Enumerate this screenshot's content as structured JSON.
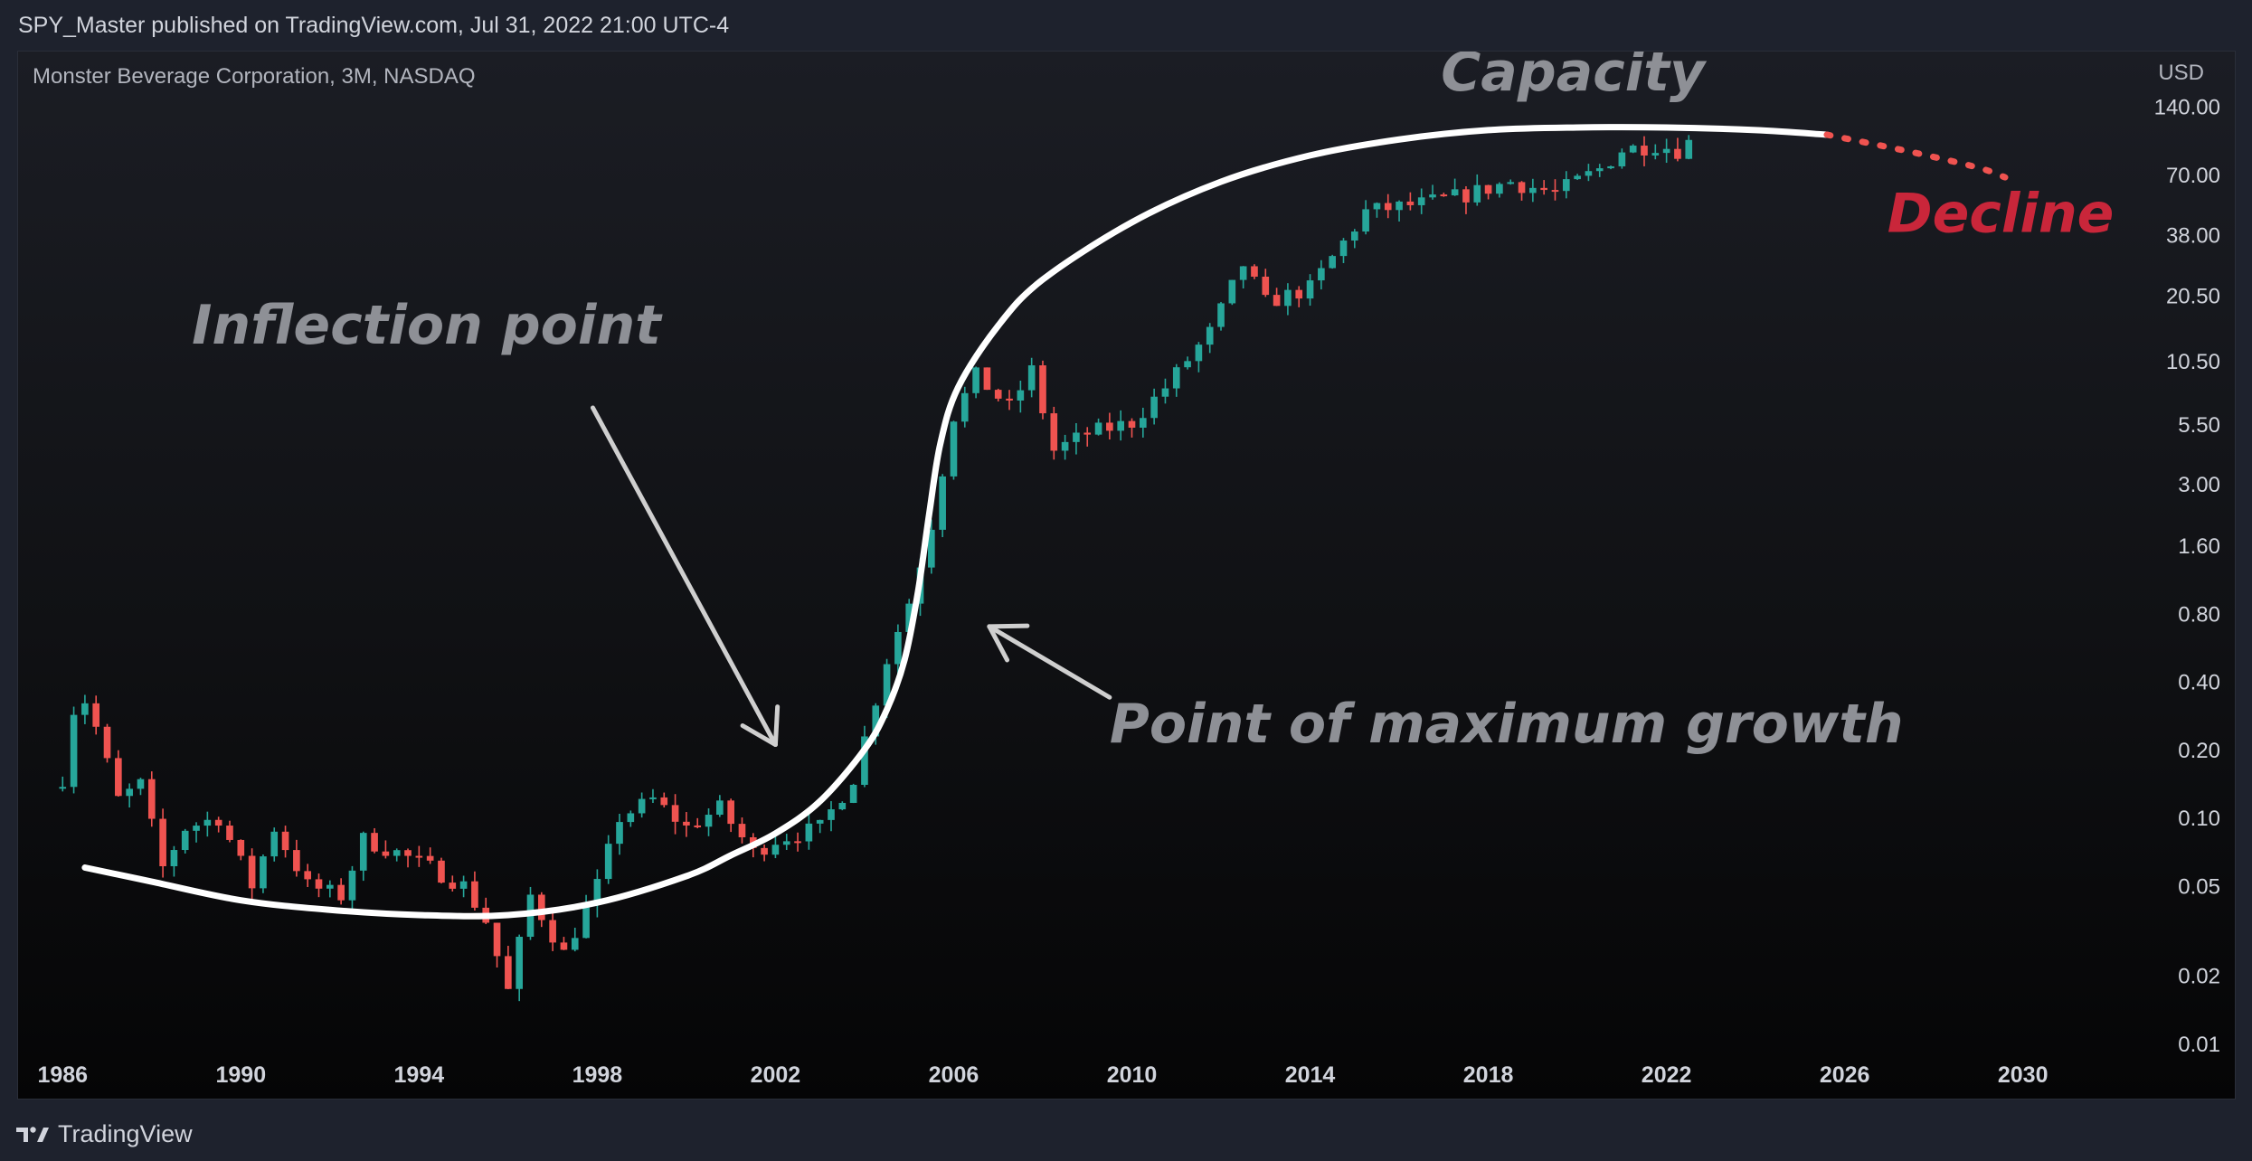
{
  "header": {
    "published_line": "SPY_Master published on TradingView.com, Jul 31, 2022 21:00 UTC-4"
  },
  "symbol": {
    "label": "Monster Beverage Corporation, 3M, NASDAQ"
  },
  "axis": {
    "currency": "USD"
  },
  "footer": {
    "brand": "TradingView"
  },
  "colors": {
    "up": "#26a69a",
    "down": "#ef5350",
    "curve": "#ffffff",
    "arrow": "#cfcfcf",
    "annotation_gray": "#8e9096",
    "decline": "#c9263a",
    "axis_text": "#d1d4dc"
  },
  "chart_data": {
    "type": "candlestick",
    "title": "Monster Beverage Corporation, 3M, NASDAQ",
    "xlabel": "",
    "ylabel": "USD",
    "y_scale": "log",
    "xlim": [
      1985.0,
      2032.3
    ],
    "ylim": [
      0.0057,
      245
    ],
    "grid": false,
    "x_ticks": [
      "1986",
      "1990",
      "1994",
      "1998",
      "2002",
      "2006",
      "2010",
      "2014",
      "2018",
      "2022",
      "2026",
      "2030"
    ],
    "y_ticks": [
      "140.00",
      "70.00",
      "38.00",
      "20.50",
      "10.50",
      "5.50",
      "3.00",
      "1.60",
      "0.80",
      "0.40",
      "0.20",
      "0.10",
      "0.05",
      "0.02",
      "0.01"
    ],
    "anchors": [
      [
        1986.0,
        0.15
      ],
      [
        1986.25,
        0.3
      ],
      [
        1986.5,
        0.33
      ],
      [
        1986.75,
        0.25
      ],
      [
        1987.25,
        0.12
      ],
      [
        1987.75,
        0.14
      ],
      [
        1988.25,
        0.06
      ],
      [
        1988.75,
        0.09
      ],
      [
        1989.5,
        0.1
      ],
      [
        1990.25,
        0.05
      ],
      [
        1990.75,
        0.09
      ],
      [
        1991.5,
        0.05
      ],
      [
        1992.25,
        0.045
      ],
      [
        1992.75,
        0.08
      ],
      [
        1993.5,
        0.07
      ],
      [
        1994.25,
        0.06
      ],
      [
        1995.0,
        0.05
      ],
      [
        1995.5,
        0.035
      ],
      [
        1996.0,
        0.017
      ],
      [
        1996.5,
        0.045
      ],
      [
        1997.25,
        0.025
      ],
      [
        1998.0,
        0.05
      ],
      [
        1998.5,
        0.1
      ],
      [
        1999.25,
        0.12
      ],
      [
        2000.0,
        0.09
      ],
      [
        2000.75,
        0.11
      ],
      [
        2001.5,
        0.07
      ],
      [
        2002.0,
        0.08
      ],
      [
        2003.0,
        0.09
      ],
      [
        2003.75,
        0.15
      ],
      [
        2004.5,
        0.5
      ],
      [
        2005.0,
        0.9
      ],
      [
        2005.5,
        2.0
      ],
      [
        2006.0,
        6.0
      ],
      [
        2006.5,
        9.0
      ],
      [
        2007.25,
        6.5
      ],
      [
        2007.75,
        9.5
      ],
      [
        2008.25,
        4.2
      ],
      [
        2009.0,
        5.0
      ],
      [
        2010.0,
        5.6
      ],
      [
        2010.75,
        8.0
      ],
      [
        2011.75,
        14.0
      ],
      [
        2012.5,
        28.0
      ],
      [
        2013.0,
        19.0
      ],
      [
        2014.0,
        22.0
      ],
      [
        2014.75,
        35.0
      ],
      [
        2015.25,
        48.0
      ],
      [
        2016.5,
        52.0
      ],
      [
        2017.5,
        57.0
      ],
      [
        2018.5,
        65.0
      ],
      [
        2019.5,
        58.0
      ],
      [
        2020.5,
        74.0
      ],
      [
        2021.0,
        90.0
      ],
      [
        2021.75,
        95.0
      ],
      [
        2022.25,
        90.0
      ],
      [
        2022.6,
        100.0
      ]
    ],
    "curve": {
      "name": "S-curve",
      "points": [
        [
          1986.5,
          0.06
        ],
        [
          1988,
          0.052
        ],
        [
          1990,
          0.043
        ],
        [
          1992,
          0.039
        ],
        [
          1994,
          0.037
        ],
        [
          1996,
          0.037
        ],
        [
          1998,
          0.042
        ],
        [
          2000,
          0.055
        ],
        [
          2001,
          0.068
        ],
        [
          2002,
          0.085
        ],
        [
          2003,
          0.118
        ],
        [
          2004,
          0.2
        ],
        [
          2004.5,
          0.3
        ],
        [
          2004.9,
          0.5
        ],
        [
          2005.2,
          1.0
        ],
        [
          2005.45,
          2.2
        ],
        [
          2005.7,
          4.5
        ],
        [
          2006.1,
          8.0
        ],
        [
          2007,
          15.0
        ],
        [
          2008,
          24.0
        ],
        [
          2010,
          43.0
        ],
        [
          2012,
          65.0
        ],
        [
          2014,
          85.0
        ],
        [
          2016,
          100.0
        ],
        [
          2018,
          110.0
        ],
        [
          2020,
          113.0
        ],
        [
          2022,
          113.0
        ],
        [
          2024,
          110.0
        ],
        [
          2025.6,
          105.0
        ]
      ]
    },
    "decline": {
      "name": "Decline (projected)",
      "points": [
        [
          2025.6,
          105.0
        ],
        [
          2027.5,
          88.0
        ],
        [
          2029.0,
          75.0
        ],
        [
          2029.6,
          68.0
        ]
      ]
    },
    "annotations": [
      {
        "text": "Capacity",
        "x": 2019.9,
        "y": 165.0,
        "color": "#8e9096",
        "anchor": "middle"
      },
      {
        "text": "Decline",
        "x": 2029.5,
        "y": 39.0,
        "color": "#c9263a",
        "anchor": "middle"
      },
      {
        "text": "Inflection point",
        "x": 1988.9,
        "y": 12.5,
        "color": "#8e9096",
        "anchor": "start"
      },
      {
        "text": "Point of maximum growth",
        "x": 2009.5,
        "y": 0.215,
        "color": "#8e9096",
        "anchor": "start"
      }
    ],
    "arrows": [
      {
        "from": [
          1997.9,
          6.5
        ],
        "to": [
          2002.0,
          0.21
        ]
      },
      {
        "from": [
          2009.5,
          0.34
        ],
        "to": [
          2006.8,
          0.7
        ]
      }
    ]
  }
}
